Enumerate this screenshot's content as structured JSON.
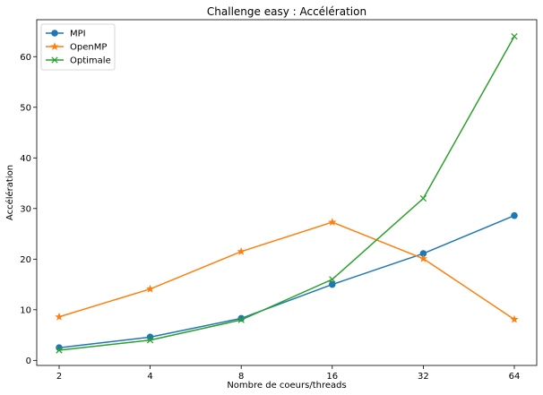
{
  "chart_data": {
    "type": "line",
    "title": "Challenge easy : Accélération",
    "xlabel": "Nombre de coeurs/threads",
    "ylabel": "Accélération",
    "categories": [
      "2",
      "4",
      "8",
      "16",
      "32",
      "64"
    ],
    "ylim": [
      -1,
      67.3
    ],
    "yticks": [
      0,
      10,
      20,
      30,
      40,
      50,
      60
    ],
    "grid": false,
    "legend_position": "upper-left",
    "series": [
      {
        "name": "MPI",
        "values": [
          2.5,
          4.6,
          8.3,
          15.0,
          21.1,
          28.6
        ],
        "color": "#1f77b4",
        "marker": "circle"
      },
      {
        "name": "OpenMP",
        "values": [
          8.6,
          14.1,
          21.5,
          27.3,
          20.1,
          8.1
        ],
        "color": "#ff7f0e",
        "marker": "star"
      },
      {
        "name": "Optimale",
        "values": [
          2,
          4,
          8,
          16,
          32,
          64
        ],
        "color": "#2ca02c",
        "marker": "x"
      }
    ]
  }
}
